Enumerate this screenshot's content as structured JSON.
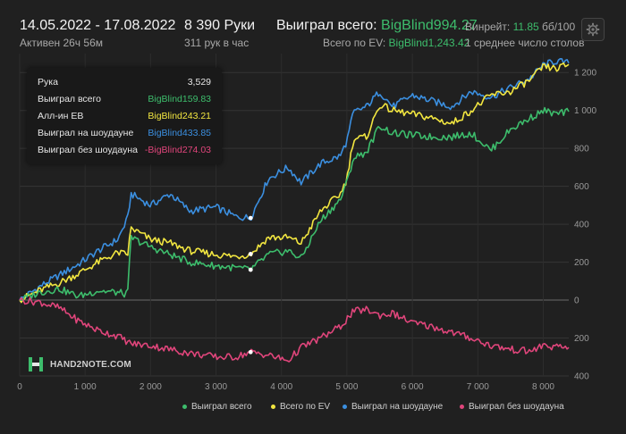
{
  "header": {
    "date_range": "14.05.2022 - 17.08.2022",
    "active": "Активен 26ч 56м",
    "hands": "8 390 Руки",
    "hands_per_hour": "311 рук в час",
    "won_total_label": "Выиграл всего:",
    "won_total_value": "BigBlind994.27",
    "ev_label": "Всего по EV:",
    "ev_value": "BigBlind1,243.42",
    "winrate_label": "Винрейт:",
    "winrate_value": "11.85",
    "winrate_suffix": "бб/100",
    "avg_tables": "1 среднее число столов"
  },
  "tooltip": {
    "rows": [
      {
        "label": "Рука",
        "value": "3,529",
        "color": "#e6e6e6"
      },
      {
        "label": "Выиграл всего",
        "value": "BigBlind159.83",
        "color": "#3dbd6c"
      },
      {
        "label": "Алл-ин EB",
        "value": "BigBlind243.21",
        "color": "#f2e640"
      },
      {
        "label": "Выиграл на шоудауне",
        "value": "BigBlind433.85",
        "color": "#3b8fe0"
      },
      {
        "label": "Выиграл без шоудауна",
        "value": "-BigBlind274.03",
        "color": "#e0457b"
      }
    ]
  },
  "watermark": {
    "text": "HAND2NOTE.COM",
    "icon": "hand2note-logo-icon"
  },
  "chart_data": {
    "type": "line",
    "xlim": [
      0,
      8390
    ],
    "ylim": [
      -400,
      1300
    ],
    "x_ticks": [
      {
        "value": 0,
        "label": "0"
      },
      {
        "value": 1000,
        "label": "1 000"
      },
      {
        "value": 2000,
        "label": "2 000"
      },
      {
        "value": 3000,
        "label": "3 000"
      },
      {
        "value": 4000,
        "label": "4 000"
      },
      {
        "value": 5000,
        "label": "5 000"
      },
      {
        "value": 6000,
        "label": "6 000"
      },
      {
        "value": 7000,
        "label": "7 000"
      },
      {
        "value": 8000,
        "label": "8 000"
      }
    ],
    "y_ticks": [
      {
        "value": 1200,
        "label": "1 200"
      },
      {
        "value": 1000,
        "label": "1 000"
      },
      {
        "value": 800,
        "label": "800"
      },
      {
        "value": 600,
        "label": "600"
      },
      {
        "value": 400,
        "label": "400"
      },
      {
        "value": 200,
        "label": "200"
      },
      {
        "value": 0,
        "label": "0"
      },
      {
        "value": -200,
        "label": "200"
      },
      {
        "value": -400,
        "label": "400"
      }
    ],
    "marker_x": 3529,
    "series": [
      {
        "name": "Выиграл на шоудауне",
        "color": "#3b8fe0",
        "x": [
          0,
          300,
          600,
          900,
          1200,
          1500,
          1650,
          1700,
          2000,
          2300,
          2600,
          3000,
          3300,
          3529,
          3800,
          4100,
          4300,
          4600,
          4900,
          5000,
          5100,
          5300,
          5500,
          5700,
          6000,
          6300,
          6600,
          6900,
          7200,
          7500,
          7800,
          8000,
          8200,
          8390
        ],
        "y": [
          0,
          70,
          130,
          190,
          260,
          320,
          430,
          560,
          500,
          560,
          470,
          490,
          440,
          433,
          640,
          700,
          620,
          720,
          760,
          840,
          990,
          1020,
          1100,
          1020,
          1080,
          1050,
          1020,
          1100,
          1070,
          1120,
          1170,
          1240,
          1260,
          1250
        ]
      },
      {
        "name": "Всего по EV",
        "color": "#f2e640",
        "x": [
          0,
          300,
          600,
          900,
          1200,
          1500,
          1650,
          1700,
          2000,
          2300,
          2600,
          3000,
          3300,
          3529,
          3800,
          4100,
          4300,
          4600,
          4900,
          5000,
          5100,
          5300,
          5500,
          5700,
          6000,
          6300,
          6600,
          6900,
          7200,
          7500,
          7800,
          8000,
          8200,
          8390
        ],
        "y": [
          0,
          50,
          90,
          140,
          200,
          250,
          240,
          380,
          320,
          300,
          260,
          240,
          230,
          243,
          330,
          330,
          300,
          470,
          560,
          640,
          850,
          860,
          1030,
          1000,
          980,
          960,
          930,
          1000,
          1080,
          1100,
          1160,
          1230,
          1220,
          1243
        ]
      },
      {
        "name": "Выиграл всего",
        "color": "#3dbd6c",
        "x": [
          0,
          300,
          600,
          900,
          1200,
          1500,
          1650,
          1700,
          2000,
          2300,
          2600,
          3000,
          3300,
          3529,
          3800,
          4100,
          4300,
          4600,
          4900,
          5000,
          5100,
          5300,
          5500,
          5700,
          6000,
          6300,
          6600,
          6900,
          7200,
          7500,
          7800,
          8000,
          8200,
          8390
        ],
        "y": [
          0,
          40,
          60,
          20,
          50,
          40,
          30,
          330,
          280,
          240,
          200,
          180,
          170,
          160,
          240,
          260,
          220,
          420,
          530,
          620,
          750,
          780,
          920,
          880,
          870,
          860,
          860,
          880,
          790,
          900,
          960,
          1000,
          980,
          994
        ]
      },
      {
        "name": "Выиграл без шоудауна",
        "color": "#e0457b",
        "x": [
          0,
          300,
          600,
          900,
          1200,
          1500,
          1700,
          2000,
          2300,
          2600,
          3000,
          3300,
          3529,
          3800,
          4100,
          4300,
          4600,
          4900,
          5000,
          5100,
          5300,
          5500,
          5700,
          6000,
          6300,
          6600,
          6900,
          7200,
          7500,
          7800,
          8000,
          8200,
          8390
        ],
        "y": [
          0,
          -10,
          -40,
          -110,
          -160,
          -190,
          -230,
          -240,
          -260,
          -280,
          -300,
          -300,
          -274,
          -290,
          -320,
          -250,
          -200,
          -140,
          -100,
          -60,
          -50,
          -80,
          -70,
          -120,
          -140,
          -170,
          -200,
          -240,
          -260,
          -270,
          -240,
          -250,
          -250
        ]
      }
    ]
  },
  "legend": [
    {
      "label": "Выиграл всего",
      "color": "#3dbd6c"
    },
    {
      "label": "Всего по EV",
      "color": "#f2e640"
    },
    {
      "label": "Выиграл на шоудауне",
      "color": "#3b8fe0"
    },
    {
      "label": "Выиграл без шоудауна",
      "color": "#e0457b"
    }
  ],
  "settings_icon": "gear-icon"
}
